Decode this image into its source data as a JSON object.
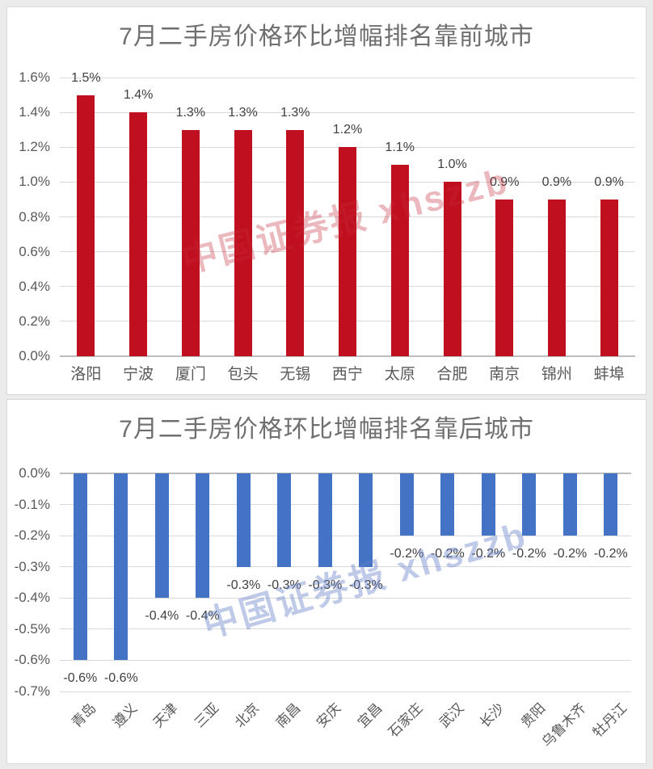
{
  "watermark": {
    "text": "中国证券报 xhszzb",
    "top_color": "rgba(194,40,55,0.33)",
    "bottom_color": "rgba(100,128,200,0.42)"
  },
  "chart_data": [
    {
      "type": "bar",
      "title": "7月二手房价格环比增幅排名靠前城市",
      "categories": [
        "洛阳",
        "宁波",
        "厦门",
        "包头",
        "无锡",
        "西宁",
        "太原",
        "合肥",
        "南京",
        "锦州",
        "蚌埠"
      ],
      "values": [
        1.5,
        1.4,
        1.3,
        1.3,
        1.3,
        1.2,
        1.1,
        1.0,
        0.9,
        0.9,
        0.9
      ],
      "data_labels": [
        "1.5%",
        "1.4%",
        "1.3%",
        "1.3%",
        "1.3%",
        "1.2%",
        "1.1%",
        "1.0%",
        "0.9%",
        "0.9%",
        "0.9%"
      ],
      "y_ticks": [
        "1.6%",
        "1.4%",
        "1.2%",
        "1.0%",
        "0.8%",
        "0.6%",
        "0.4%",
        "0.2%",
        "0.0%"
      ],
      "ylim": [
        0,
        1.6
      ],
      "xlabel": "",
      "ylabel": "",
      "grid": true,
      "legend": "none",
      "bar_color": "#c00f1e",
      "value_suffix": "%"
    },
    {
      "type": "bar",
      "title": "7月二手房价格环比增幅排名靠后城市",
      "categories": [
        "青岛",
        "遵义",
        "天津",
        "三亚",
        "北京",
        "南昌",
        "安庆",
        "宜昌",
        "石家庄",
        "武汉",
        "长沙",
        "贵阳",
        "乌鲁木齐",
        "牡丹江"
      ],
      "values": [
        -0.6,
        -0.6,
        -0.4,
        -0.4,
        -0.3,
        -0.3,
        -0.3,
        -0.3,
        -0.2,
        -0.2,
        -0.2,
        -0.2,
        -0.2,
        -0.2
      ],
      "data_labels": [
        "-0.6%",
        "-0.6%",
        "-0.4%",
        "-0.4%",
        "-0.3%",
        "-0.3%",
        "-0.3%",
        "-0.3%",
        "-0.2%",
        "-0.2%",
        "-0.2%",
        "-0.2%",
        "-0.2%",
        "-0.2%"
      ],
      "y_ticks": [
        "0.0%",
        "-0.1%",
        "-0.2%",
        "-0.3%",
        "-0.4%",
        "-0.5%",
        "-0.6%",
        "-0.7%"
      ],
      "ylim": [
        -0.7,
        0
      ],
      "xlabel": "",
      "ylabel": "",
      "grid": true,
      "legend": "none",
      "bar_color": "#4472c4",
      "value_suffix": "%"
    }
  ]
}
